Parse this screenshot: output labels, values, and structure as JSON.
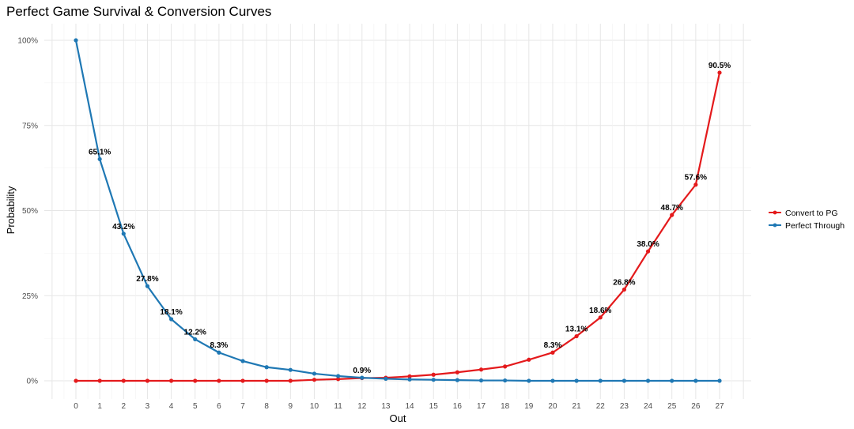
{
  "chart_data": {
    "type": "line",
    "title": "Perfect Game Survival & Conversion Curves",
    "xlabel": "Out",
    "ylabel": "Probability",
    "xlim": [
      0,
      27
    ],
    "ylim": [
      0,
      100
    ],
    "x_ticks": [
      "0",
      "1",
      "2",
      "3",
      "4",
      "5",
      "6",
      "7",
      "8",
      "9",
      "10",
      "11",
      "12",
      "13",
      "14",
      "15",
      "16",
      "17",
      "18",
      "19",
      "20",
      "21",
      "22",
      "23",
      "24",
      "25",
      "26",
      "27"
    ],
    "y_ticks": [
      {
        "v": 0,
        "label": "0%"
      },
      {
        "v": 25,
        "label": "25%"
      },
      {
        "v": 50,
        "label": "50%"
      },
      {
        "v": 75,
        "label": "75%"
      },
      {
        "v": 100,
        "label": "100%"
      }
    ],
    "grid": true,
    "legend_position": "right",
    "x": [
      0,
      1,
      2,
      3,
      4,
      5,
      6,
      7,
      8,
      9,
      10,
      11,
      12,
      13,
      14,
      15,
      16,
      17,
      18,
      19,
      20,
      21,
      22,
      23,
      24,
      25,
      26,
      27
    ],
    "series": [
      {
        "name": "Convert to PG",
        "color": "#e41a1c",
        "values": [
          0,
          0,
          0,
          0,
          0,
          0,
          0,
          0,
          0,
          0,
          0.3,
          0.5,
          0.8,
          0.9,
          1.3,
          1.8,
          2.5,
          3.3,
          4.2,
          6.2,
          8.3,
          13.1,
          18.6,
          26.8,
          38.0,
          48.7,
          57.6,
          90.5
        ],
        "labels": {
          "20": "8.3%",
          "21": "13.1%",
          "22": "18.6%",
          "23": "26.8%",
          "24": "38.0%",
          "25": "48.7%",
          "26": "57.6%",
          "27": "90.5%"
        }
      },
      {
        "name": "Perfect Through",
        "color": "#1f78b4",
        "values": [
          100,
          65.1,
          43.2,
          27.8,
          18.1,
          12.2,
          8.3,
          5.8,
          4.0,
          3.2,
          2.1,
          1.4,
          0.9,
          0.6,
          0.4,
          0.3,
          0.2,
          0.1,
          0.1,
          0,
          0,
          0,
          0,
          0,
          0,
          0,
          0,
          0
        ],
        "labels": {
          "1": "65.1%",
          "2": "43.2%",
          "3": "27.8%",
          "4": "18.1%",
          "5": "12.2%",
          "6": "8.3%",
          "12": "0.9%"
        }
      }
    ]
  }
}
